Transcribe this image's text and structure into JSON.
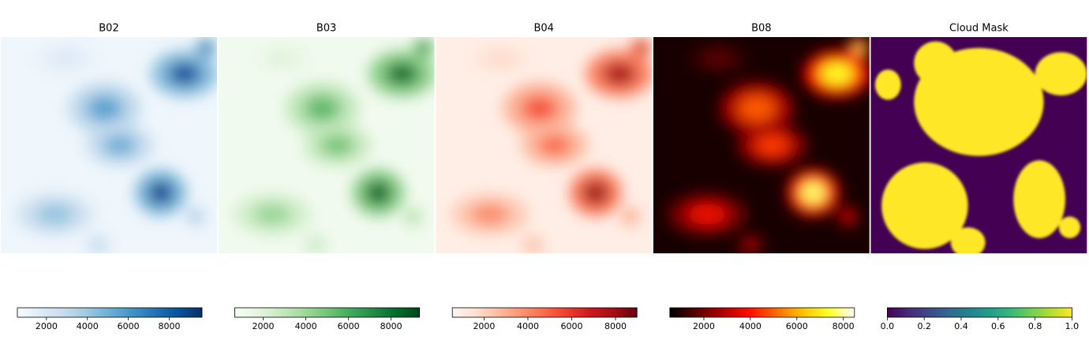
{
  "chart_data": [
    {
      "type": "image",
      "title": "B02",
      "colormap": [
        "#f7fbff",
        "#deebf7",
        "#c6dbef",
        "#9ecae1",
        "#6baed6",
        "#4292c6",
        "#2171b5",
        "#08519c",
        "#08306b"
      ],
      "clim": [
        580,
        9600
      ],
      "cticks": [
        2000,
        4000,
        6000,
        8000
      ]
    },
    {
      "type": "image",
      "title": "B03",
      "colormap": [
        "#f7fcf5",
        "#e5f5e0",
        "#c7e9c0",
        "#a1d99b",
        "#74c476",
        "#41ab5d",
        "#238b45",
        "#006d2c",
        "#00441b"
      ],
      "clim": [
        670,
        9330
      ],
      "cticks": [
        2000,
        4000,
        6000,
        8000
      ]
    },
    {
      "type": "image",
      "title": "B04",
      "colormap": [
        "#fff5f0",
        "#fee0d2",
        "#fcbba1",
        "#fc9272",
        "#fb6a4a",
        "#ef3b2c",
        "#cb181d",
        "#a50f15",
        "#67000d"
      ],
      "clim": [
        550,
        8980
      ],
      "cticks": [
        2000,
        4000,
        6000,
        8000
      ]
    },
    {
      "type": "image",
      "title": "B08",
      "colormap": [
        "#000000",
        "#590000",
        "#b20000",
        "#ff0c00",
        "#ff6600",
        "#ffbf00",
        "#ffff26",
        "#ffffff"
      ],
      "clim": [
        535,
        8480
      ],
      "cticks": [
        2000,
        4000,
        6000,
        8000
      ]
    },
    {
      "type": "mask",
      "title": "Cloud Mask",
      "colormap": [
        "#440154",
        "#482878",
        "#3e4989",
        "#31688e",
        "#26828e",
        "#1f9e89",
        "#35b779",
        "#6ece58",
        "#b5de2b",
        "#fde725"
      ],
      "clim": [
        0,
        1
      ],
      "cticks": [
        {
          "value": 0,
          "label": "0.0"
        },
        0.2,
        0.4,
        0.6,
        0.8,
        {
          "value": 1,
          "label": "1.0"
        }
      ]
    }
  ]
}
